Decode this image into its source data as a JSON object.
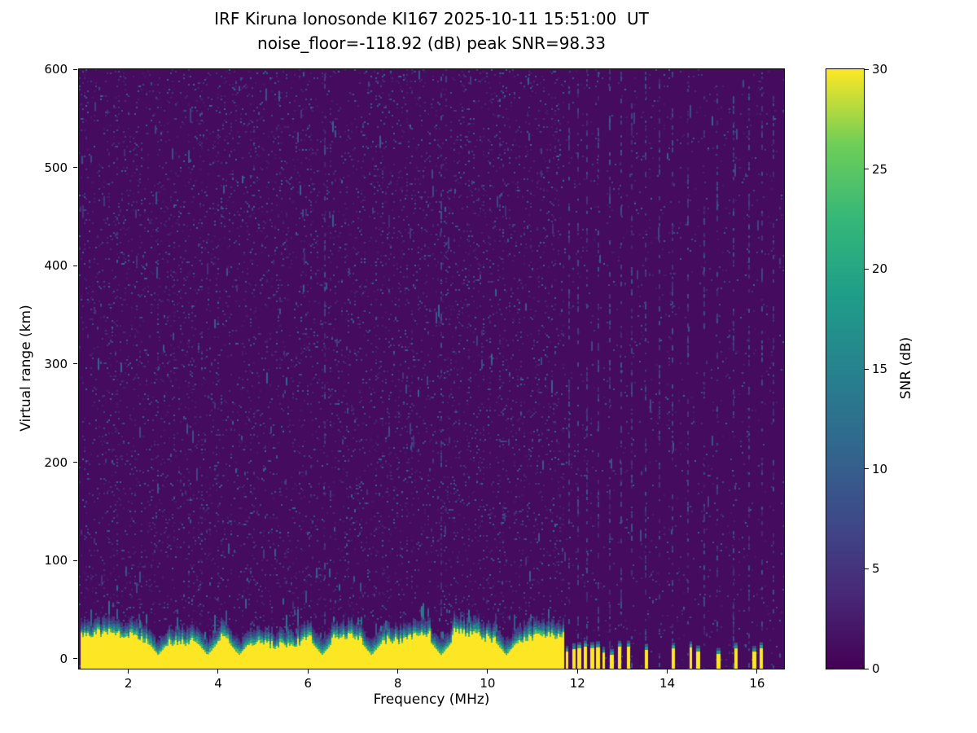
{
  "chart_data": {
    "type": "heatmap",
    "title": "IRF Kiruna Ionosonde KI167 2025-10-11 15:51:00  UT",
    "subtitle": "noise_floor=-118.92 (dB) peak SNR=98.33",
    "xlabel": "Frequency (MHz)",
    "ylabel": "Virtual range (km)",
    "colorbar_label": "SNR (dB)",
    "xlim": [
      0.9,
      16.6
    ],
    "ylim": [
      -10,
      600
    ],
    "xticks": [
      2,
      4,
      6,
      8,
      10,
      12,
      14,
      16
    ],
    "yticks": [
      0,
      100,
      200,
      300,
      400,
      500,
      600
    ],
    "colorbar": {
      "min": 0,
      "max": 30,
      "ticks": [
        0,
        5,
        10,
        15,
        20,
        25,
        30
      ],
      "colormap": "viridis"
    },
    "background_snr_db": 1.0,
    "noise_speckle": {
      "density_left": 0.06,
      "density_right": 0.018,
      "snr_min": 2.5,
      "snr_max": 12,
      "split_mhz": 11.7
    },
    "ground_echo": {
      "freq_start_mhz": 0.95,
      "freq_end_mhz": 11.68,
      "top_km_mean": 21,
      "top_km_var": 9,
      "snr_db": 30,
      "notch_freqs_mhz": [
        2.65,
        3.75,
        4.45,
        6.3,
        7.4,
        8.95,
        10.4
      ]
    },
    "rfi_stripes_mhz": [
      6.35,
      8.95,
      11.8,
      12.0,
      12.2,
      12.45,
      12.7,
      12.95,
      13.2,
      13.5,
      13.8,
      14.1,
      14.45,
      14.8,
      15.1,
      15.45,
      15.8,
      16.1,
      16.35
    ],
    "burst_freqs_mhz": [
      11.75,
      11.88,
      12.0,
      12.14,
      12.28,
      12.42,
      12.56,
      12.72,
      12.9,
      13.1,
      13.5,
      14.1,
      14.5,
      14.65,
      15.1,
      15.5,
      15.9,
      16.05
    ],
    "colors": {
      "background_low": "#440154",
      "peak": "#fde725",
      "axis": "#000000",
      "figure_background": "#ffffff"
    }
  }
}
